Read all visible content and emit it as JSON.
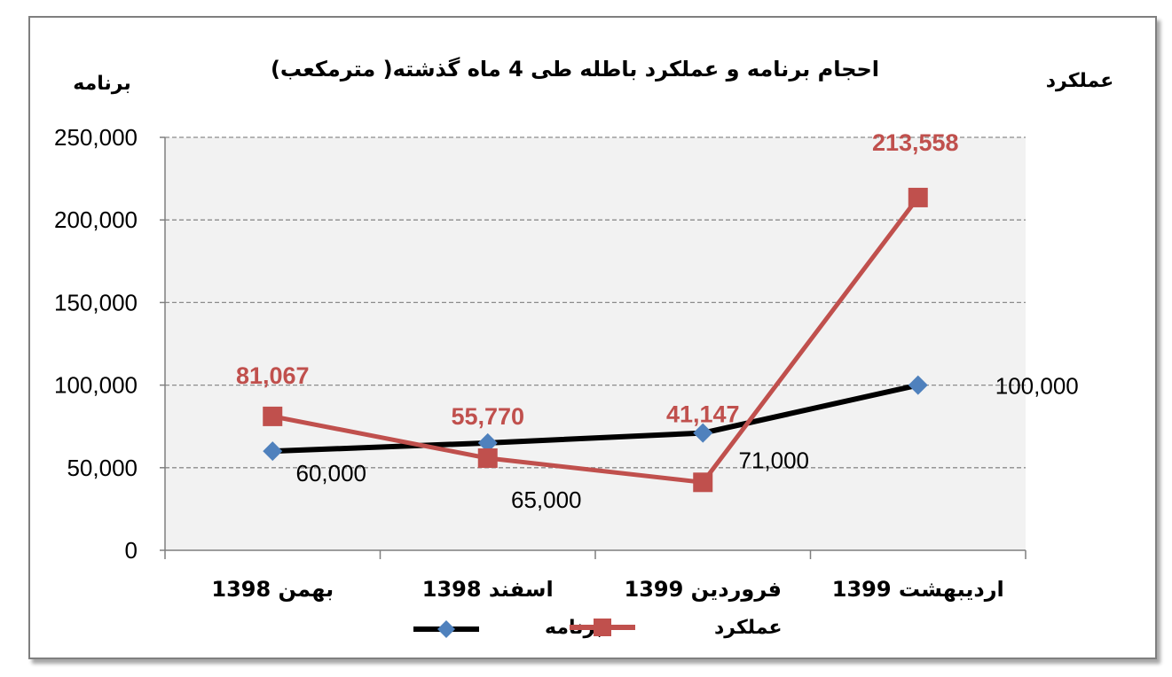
{
  "chart_data": {
    "type": "line",
    "title": "احجام برنامه و عملکرد باطله طی 4 ماه گذشته( مترمکعب)",
    "ylabel_left": "برنامه",
    "ylabel_right": "عملکرد",
    "categories": [
      "بهمن 1398",
      "اسفند 1398",
      "فروردین 1399",
      "اردیبهشت 1399"
    ],
    "yticks": [
      "250,000",
      "200,000",
      "150,000",
      "100,000",
      "50,000",
      "0"
    ],
    "ylim": [
      0,
      250000
    ],
    "grid": true,
    "legend_position": "bottom",
    "series": [
      {
        "name": "برنامه",
        "values": [
          60000,
          65000,
          71000,
          100000
        ],
        "data_labels": [
          "60,000",
          "65,000",
          "71,000",
          "100,000"
        ],
        "color": "#000000",
        "marker": "diamond",
        "marker_color": "#4f81bd"
      },
      {
        "name": "عملکرد",
        "values": [
          81067,
          55770,
          41147,
          213558
        ],
        "data_labels": [
          "81,067",
          "55,770",
          "41,147",
          "213,558"
        ],
        "color": "#c0504d",
        "marker": "square",
        "marker_color": "#c0504d"
      }
    ]
  }
}
